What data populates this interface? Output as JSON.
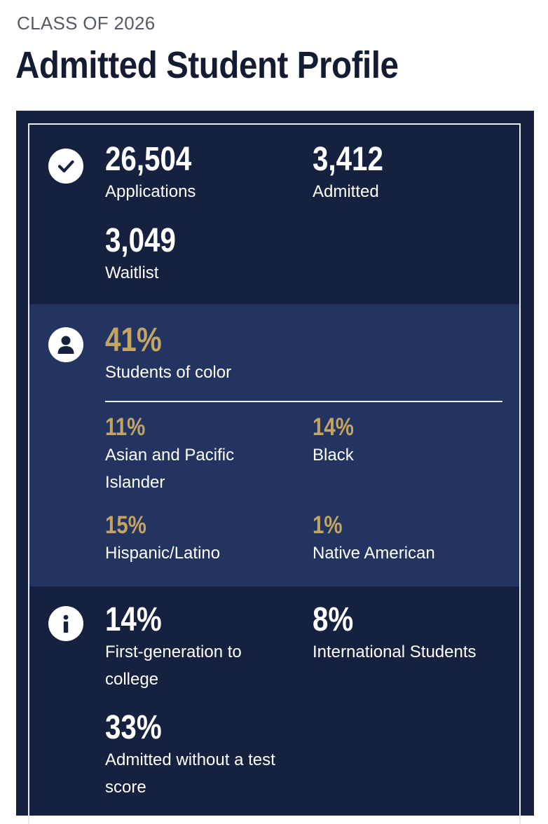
{
  "header": {
    "eyebrow": "CLASS OF 2026",
    "title": "Admitted Student Profile"
  },
  "section_overview": {
    "icon": "check-circle-icon",
    "stats": [
      {
        "value": "26,504",
        "label": "Applications"
      },
      {
        "value": "3,412",
        "label": "Admitted"
      },
      {
        "value": "3,049",
        "label": "Waitlist"
      }
    ]
  },
  "section_diversity": {
    "icon": "person-icon",
    "headline": {
      "value": "41%",
      "label": "Students of color"
    },
    "breakdown": [
      {
        "value": "11%",
        "label": "Asian and Pacific Islander"
      },
      {
        "value": "14%",
        "label": "Black"
      },
      {
        "value": "15%",
        "label": "Hispanic/Latino"
      },
      {
        "value": "1%",
        "label": "Native American"
      }
    ]
  },
  "section_other": {
    "icon": "info-icon",
    "stats": [
      {
        "value": "14%",
        "label": "First-generation to college"
      },
      {
        "value": "8%",
        "label": "International Students"
      },
      {
        "value": "33%",
        "label": "Admitted without a test score"
      }
    ]
  },
  "colors": {
    "navy": "#16213f",
    "section_blue": "#243461",
    "gold": "#c4a463",
    "title": "#141c33"
  }
}
